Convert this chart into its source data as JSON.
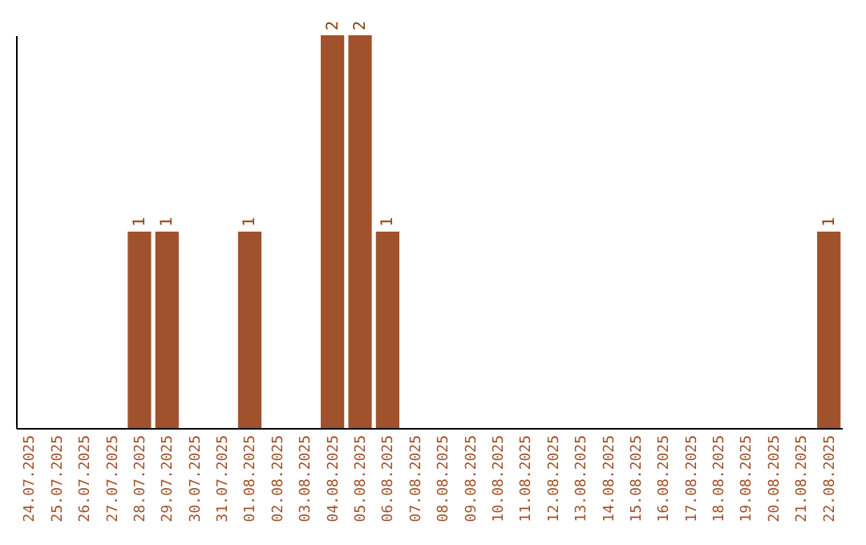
{
  "chart_data": {
    "type": "bar",
    "categories": [
      "24.07.2025",
      "25.07.2025",
      "26.07.2025",
      "27.07.2025",
      "28.07.2025",
      "29.07.2025",
      "30.07.2025",
      "31.07.2025",
      "01.08.2025",
      "02.08.2025",
      "03.08.2025",
      "04.08.2025",
      "05.08.2025",
      "06.08.2025",
      "07.08.2025",
      "08.08.2025",
      "09.08.2025",
      "10.08.2025",
      "11.08.2025",
      "12.08.2025",
      "13.08.2025",
      "14.08.2025",
      "15.08.2025",
      "16.08.2025",
      "17.08.2025",
      "18.08.2025",
      "19.08.2025",
      "20.08.2025",
      "21.08.2025",
      "22.08.2025"
    ],
    "values": [
      0,
      0,
      0,
      0,
      1,
      1,
      0,
      0,
      1,
      0,
      0,
      2,
      2,
      1,
      0,
      0,
      0,
      0,
      0,
      0,
      0,
      0,
      0,
      0,
      0,
      0,
      0,
      0,
      0,
      1
    ],
    "value_labels": [
      null,
      null,
      null,
      null,
      "1",
      "1",
      null,
      null,
      "1",
      null,
      null,
      "2",
      "2",
      "1",
      null,
      null,
      null,
      null,
      null,
      null,
      null,
      null,
      null,
      null,
      null,
      null,
      null,
      null,
      null,
      "1"
    ],
    "color": "#a0522d",
    "grid": false
  }
}
